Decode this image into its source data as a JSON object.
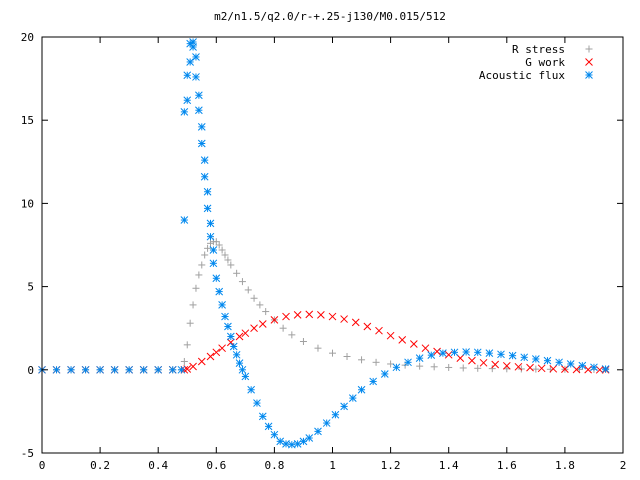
{
  "chart_data": {
    "type": "scatter",
    "title": "m2/n1.5/q2.0/r-+.25-j130/M0.015/512",
    "xlabel": "",
    "ylabel": "",
    "xlim": [
      0,
      2
    ],
    "ylim": [
      -5,
      20
    ],
    "x_ticks": [
      0,
      0.2,
      0.4,
      0.6,
      0.8,
      1,
      1.2,
      1.4,
      1.6,
      1.8,
      2
    ],
    "x_tick_labels": [
      "0",
      "0.2",
      "0.4",
      "0.6",
      "0.8",
      "1",
      "1.2",
      "1.4",
      "1.6",
      "1.8",
      "2"
    ],
    "y_ticks": [
      -5,
      0,
      5,
      10,
      15,
      20
    ],
    "y_tick_labels": [
      "-5",
      "0",
      "5",
      "10",
      "15",
      "20"
    ],
    "grid": false,
    "legend_position": "top-right",
    "series": [
      {
        "name": "R stress",
        "marker": "plus",
        "color": "#a0a0a0",
        "x": [
          0.0,
          0.05,
          0.1,
          0.15,
          0.2,
          0.25,
          0.3,
          0.35,
          0.4,
          0.45,
          0.48,
          0.49,
          0.5,
          0.51,
          0.52,
          0.53,
          0.54,
          0.55,
          0.56,
          0.57,
          0.58,
          0.59,
          0.6,
          0.61,
          0.62,
          0.63,
          0.64,
          0.65,
          0.67,
          0.69,
          0.71,
          0.73,
          0.75,
          0.77,
          0.8,
          0.83,
          0.86,
          0.9,
          0.95,
          1.0,
          1.05,
          1.1,
          1.15,
          1.2,
          1.25,
          1.3,
          1.35,
          1.4,
          1.45,
          1.5,
          1.55,
          1.6,
          1.65,
          1.7,
          1.75,
          1.8,
          1.85,
          1.9,
          1.94
        ],
        "y": [
          0,
          0,
          0,
          0,
          0,
          0,
          0,
          0,
          0,
          0,
          0,
          0.5,
          1.5,
          2.8,
          3.9,
          4.9,
          5.7,
          6.3,
          6.9,
          7.3,
          7.6,
          7.7,
          7.7,
          7.5,
          7.2,
          6.9,
          6.6,
          6.3,
          5.8,
          5.3,
          4.8,
          4.3,
          3.9,
          3.5,
          3.0,
          2.5,
          2.1,
          1.7,
          1.3,
          1.0,
          0.8,
          0.6,
          0.45,
          0.35,
          0.28,
          0.22,
          0.18,
          0.14,
          0.11,
          0.09,
          0.07,
          0.06,
          0.05,
          0.04,
          0.03,
          0.03,
          0.02,
          0.02,
          0.02
        ]
      },
      {
        "name": "G work",
        "marker": "cross",
        "color": "#ff0000",
        "x": [
          0.0,
          0.05,
          0.1,
          0.15,
          0.2,
          0.25,
          0.3,
          0.35,
          0.4,
          0.45,
          0.49,
          0.5,
          0.52,
          0.55,
          0.58,
          0.6,
          0.62,
          0.65,
          0.68,
          0.7,
          0.73,
          0.76,
          0.8,
          0.84,
          0.88,
          0.92,
          0.96,
          1.0,
          1.04,
          1.08,
          1.12,
          1.16,
          1.2,
          1.24,
          1.28,
          1.32,
          1.36,
          1.4,
          1.44,
          1.48,
          1.52,
          1.56,
          1.6,
          1.64,
          1.68,
          1.72,
          1.76,
          1.8,
          1.84,
          1.88,
          1.92,
          1.94
        ],
        "y": [
          0,
          0,
          0,
          0,
          0,
          0,
          0,
          0,
          0,
          0,
          0,
          0.05,
          0.2,
          0.5,
          0.8,
          1.05,
          1.3,
          1.65,
          2.0,
          2.2,
          2.5,
          2.75,
          3.0,
          3.2,
          3.3,
          3.33,
          3.3,
          3.2,
          3.05,
          2.85,
          2.6,
          2.35,
          2.05,
          1.8,
          1.55,
          1.3,
          1.1,
          0.9,
          0.7,
          0.55,
          0.42,
          0.32,
          0.24,
          0.18,
          0.13,
          0.09,
          0.06,
          0.04,
          0.02,
          0.01,
          0.0,
          0.0
        ]
      },
      {
        "name": "Acoustic flux",
        "marker": "star",
        "color": "#0088ee",
        "x": [
          0.0,
          0.05,
          0.1,
          0.15,
          0.2,
          0.25,
          0.3,
          0.35,
          0.4,
          0.45,
          0.48,
          0.49,
          0.49,
          0.5,
          0.5,
          0.51,
          0.51,
          0.52,
          0.52,
          0.53,
          0.53,
          0.54,
          0.54,
          0.55,
          0.55,
          0.56,
          0.56,
          0.57,
          0.57,
          0.58,
          0.58,
          0.59,
          0.59,
          0.6,
          0.61,
          0.62,
          0.63,
          0.64,
          0.65,
          0.66,
          0.67,
          0.68,
          0.69,
          0.7,
          0.72,
          0.74,
          0.76,
          0.78,
          0.8,
          0.82,
          0.84,
          0.86,
          0.88,
          0.9,
          0.92,
          0.95,
          0.98,
          1.01,
          1.04,
          1.07,
          1.1,
          1.14,
          1.18,
          1.22,
          1.26,
          1.3,
          1.34,
          1.38,
          1.42,
          1.46,
          1.5,
          1.54,
          1.58,
          1.62,
          1.66,
          1.7,
          1.74,
          1.78,
          1.82,
          1.86,
          1.9,
          1.94
        ],
        "y": [
          0,
          0,
          0,
          0,
          0,
          0,
          0,
          0,
          0,
          0,
          0,
          9.0,
          15.5,
          16.2,
          17.7,
          18.5,
          19.6,
          19.7,
          19.4,
          18.8,
          17.6,
          16.5,
          15.6,
          14.6,
          13.6,
          12.6,
          11.6,
          10.7,
          9.7,
          8.8,
          8.0,
          7.2,
          6.4,
          5.5,
          4.7,
          3.9,
          3.2,
          2.6,
          2.0,
          1.4,
          0.9,
          0.4,
          0.0,
          -0.4,
          -1.2,
          -2.0,
          -2.8,
          -3.4,
          -3.9,
          -4.3,
          -4.45,
          -4.5,
          -4.45,
          -4.3,
          -4.1,
          -3.7,
          -3.2,
          -2.7,
          -2.2,
          -1.7,
          -1.2,
          -0.7,
          -0.25,
          0.15,
          0.45,
          0.7,
          0.88,
          1.0,
          1.05,
          1.07,
          1.05,
          1.0,
          0.93,
          0.85,
          0.75,
          0.65,
          0.55,
          0.45,
          0.35,
          0.25,
          0.15,
          0.05
        ]
      }
    ]
  }
}
